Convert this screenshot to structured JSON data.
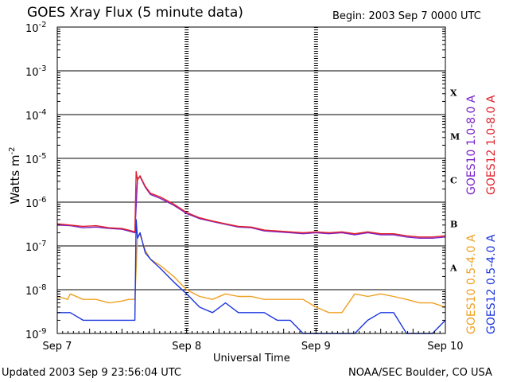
{
  "title": "GOES Xray Flux (5 minute data)",
  "begin_label": "Begin:  2003 Sep 7 0000 UTC",
  "updated_label": "Updated 2003 Sep  9 23:56:04 UTC",
  "credit_label": "NOAA/SEC Boulder, CO USA",
  "chart_data": {
    "type": "line",
    "xlabel": "Universal Time",
    "ylabel": "Watts m",
    "ylabel_sup": "-2",
    "y_scale": "log",
    "ylim": [
      1e-09,
      0.01
    ],
    "y_ticks": [
      {
        "mant": "10",
        "exp": "-2",
        "value": 0.01
      },
      {
        "mant": "10",
        "exp": "-3",
        "value": 0.001
      },
      {
        "mant": "10",
        "exp": "-4",
        "value": 0.0001
      },
      {
        "mant": "10",
        "exp": "-5",
        "value": 1e-05
      },
      {
        "mant": "10",
        "exp": "-6",
        "value": 1e-06
      },
      {
        "mant": "10",
        "exp": "-7",
        "value": 1e-07
      },
      {
        "mant": "10",
        "exp": "-8",
        "value": 1e-08
      },
      {
        "mant": "10",
        "exp": "-9",
        "value": 1e-09
      }
    ],
    "x_unit": "days since 2003 Sep 7 0000 UTC",
    "xlim": [
      0,
      3
    ],
    "x_ticks": [
      {
        "label": "Sep 7",
        "value": 0
      },
      {
        "label": "Sep 8",
        "value": 1
      },
      {
        "label": "Sep 9",
        "value": 2
      },
      {
        "label": "Sep 10",
        "value": 3
      }
    ],
    "flare_classes": [
      {
        "label": "X",
        "value": 0.0001
      },
      {
        "label": "M",
        "value": 1e-05
      },
      {
        "label": "C",
        "value": 1e-06
      },
      {
        "label": "B",
        "value": 1e-07
      },
      {
        "label": "A",
        "value": 1e-08
      }
    ],
    "series": [
      {
        "name": "GOES10 1.0-8.0 A",
        "color": "#7a22c8",
        "x": [
          0,
          0.1,
          0.2,
          0.3,
          0.4,
          0.5,
          0.55,
          0.6,
          0.62,
          0.64,
          0.68,
          0.72,
          0.8,
          0.9,
          1.0,
          1.1,
          1.2,
          1.3,
          1.4,
          1.5,
          1.6,
          1.7,
          1.8,
          1.9,
          2.0,
          2.1,
          2.2,
          2.3,
          2.4,
          2.5,
          2.6,
          2.7,
          2.8,
          2.9,
          3.0
        ],
        "y": [
          3e-07,
          2.9e-07,
          2.6e-07,
          2.7e-07,
          2.5e-07,
          2.4e-07,
          2.2e-07,
          2e-07,
          3.5e-06,
          3.8e-06,
          2.2e-06,
          1.5e-06,
          1.2e-06,
          8.5e-07,
          5.5e-07,
          4.2e-07,
          3.6e-07,
          3.1e-07,
          2.7e-07,
          2.6e-07,
          2.2e-07,
          2.1e-07,
          2e-07,
          1.9e-07,
          2e-07,
          1.9e-07,
          2e-07,
          1.8e-07,
          2e-07,
          1.8e-07,
          1.8e-07,
          1.6e-07,
          1.5e-07,
          1.5e-07,
          1.6e-07
        ]
      },
      {
        "name": "GOES12 1.0-8.0 A",
        "color": "#e0202a",
        "x": [
          0,
          0.1,
          0.2,
          0.3,
          0.4,
          0.5,
          0.55,
          0.6,
          0.61,
          0.62,
          0.64,
          0.68,
          0.72,
          0.8,
          0.9,
          1.0,
          1.1,
          1.2,
          1.3,
          1.4,
          1.5,
          1.6,
          1.7,
          1.8,
          1.9,
          2.0,
          2.1,
          2.2,
          2.3,
          2.4,
          2.5,
          2.6,
          2.7,
          2.8,
          2.9,
          3.0
        ],
        "y": [
          3.2e-07,
          3e-07,
          2.8e-07,
          2.9e-07,
          2.6e-07,
          2.5e-07,
          2.3e-07,
          2.1e-07,
          5e-06,
          3.2e-06,
          4e-06,
          2.3e-06,
          1.6e-06,
          1.3e-06,
          9e-07,
          5.8e-07,
          4.4e-07,
          3.7e-07,
          3.2e-07,
          2.8e-07,
          2.7e-07,
          2.3e-07,
          2.2e-07,
          2.1e-07,
          2e-07,
          2.1e-07,
          2e-07,
          2.1e-07,
          1.9e-07,
          2.1e-07,
          1.9e-07,
          1.9e-07,
          1.7e-07,
          1.6e-07,
          1.6e-07,
          1.7e-07
        ]
      },
      {
        "name": "GOES10 0.5-4.0 A",
        "color": "#f0a020",
        "x": [
          0,
          0.08,
          0.1,
          0.2,
          0.3,
          0.4,
          0.5,
          0.55,
          0.6,
          0.62,
          0.64,
          0.68,
          0.72,
          0.8,
          0.9,
          1.0,
          1.1,
          1.2,
          1.3,
          1.4,
          1.5,
          1.6,
          1.7,
          1.8,
          1.9,
          2.0,
          2.1,
          2.2,
          2.3,
          2.4,
          2.5,
          2.6,
          2.7,
          2.8,
          2.9,
          3.0
        ],
        "y": [
          7e-09,
          6e-09,
          8e-09,
          6e-09,
          6e-09,
          5e-09,
          5.5e-09,
          6e-09,
          6e-09,
          1.7e-07,
          1.8e-07,
          8e-08,
          5e-08,
          3.5e-08,
          2e-08,
          1e-08,
          7e-09,
          6e-09,
          8e-09,
          7e-09,
          7e-09,
          6e-09,
          6e-09,
          6e-09,
          6e-09,
          4e-09,
          3e-09,
          3e-09,
          8e-09,
          7e-09,
          8e-09,
          7e-09,
          6e-09,
          5e-09,
          5e-09,
          4e-09
        ]
      },
      {
        "name": "GOES12 0.5-4.0 A",
        "color": "#1a35e0",
        "x": [
          0,
          0.1,
          0.2,
          0.3,
          0.4,
          0.5,
          0.55,
          0.6,
          0.61,
          0.62,
          0.64,
          0.68,
          0.72,
          0.8,
          0.9,
          1.0,
          1.1,
          1.2,
          1.3,
          1.4,
          1.5,
          1.6,
          1.7,
          1.8,
          1.9,
          2.0,
          2.1,
          2.2,
          2.3,
          2.4,
          2.5,
          2.6,
          2.7,
          2.8,
          2.9,
          3.0
        ],
        "y": [
          3e-09,
          3e-09,
          2e-09,
          2e-09,
          2e-09,
          2e-09,
          2e-09,
          2e-09,
          4e-07,
          1.5e-07,
          2e-07,
          7e-08,
          5e-08,
          3e-08,
          1.5e-08,
          8e-09,
          4e-09,
          3e-09,
          5e-09,
          3e-09,
          3e-09,
          3e-09,
          2e-09,
          2e-09,
          1e-09,
          1e-09,
          1e-09,
          1e-09,
          1e-09,
          2e-09,
          3e-09,
          3e-09,
          1e-09,
          1e-09,
          1e-09,
          2e-09
        ]
      }
    ]
  }
}
